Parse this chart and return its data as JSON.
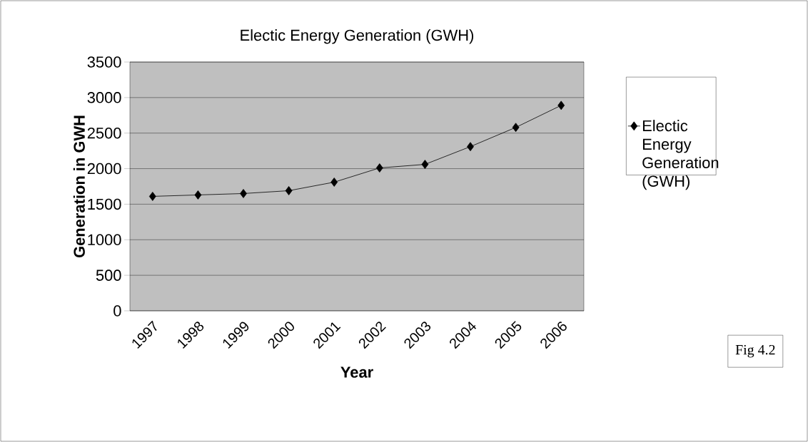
{
  "chart_data": {
    "type": "line",
    "title": "Electic Energy Generation (GWH)",
    "xlabel": "Year",
    "ylabel": "Generation in GWH",
    "categories": [
      "1997",
      "1998",
      "1999",
      "2000",
      "2001",
      "2002",
      "2003",
      "2004",
      "2005",
      "2006"
    ],
    "series": [
      {
        "name": "Electic Energy Generation (GWH)",
        "color": "#000000",
        "values": [
          1610,
          1630,
          1650,
          1690,
          1810,
          2010,
          2060,
          2310,
          2580,
          2890
        ]
      }
    ],
    "ylim": [
      0,
      3500
    ],
    "yticks": [
      0,
      500,
      1000,
      1500,
      2000,
      2500,
      3000,
      3500
    ],
    "grid": "y",
    "legend": "right",
    "marker": "diamond",
    "line_style": "solid",
    "annotations": [
      "Fig 4.2"
    ]
  }
}
